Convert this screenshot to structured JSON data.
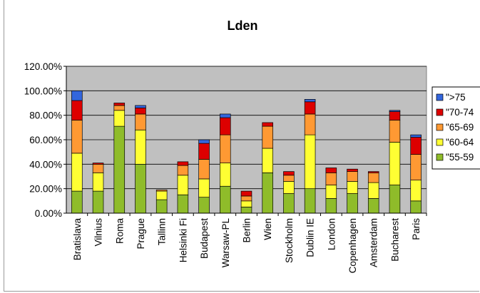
{
  "chart_data": {
    "type": "bar",
    "stacked": true,
    "title": "Lden",
    "xlabel": "",
    "ylabel": "",
    "ylim": [
      0,
      1.2
    ],
    "y_ticks": [
      "0.00%",
      "20.00%",
      "40.00%",
      "60.00%",
      "80.00%",
      "100.00%",
      "120.00%"
    ],
    "grid": true,
    "legend_position": "right",
    "categories": [
      "Bratislava",
      "Vilnius",
      "Roma",
      "Prague",
      "Tallinn",
      "Helsinki Fi",
      "Budapest",
      "Warsaw-PL",
      "Berlin",
      "Wien",
      "Stockholm",
      "Dublin IE",
      "London",
      "Copenhagen",
      "Amsterdam",
      "Bucharest",
      "Paris"
    ],
    "series": [
      {
        "name": "\"55-59",
        "color": "#8fbc2a",
        "values": [
          0.18,
          0.18,
          0.71,
          0.4,
          0.11,
          0.15,
          0.13,
          0.22,
          0.05,
          0.33,
          0.16,
          0.2,
          0.12,
          0.16,
          0.12,
          0.23,
          0.1
        ]
      },
      {
        "name": "\"60-64",
        "color": "#ffff33",
        "values": [
          0.31,
          0.15,
          0.13,
          0.28,
          0.07,
          0.16,
          0.15,
          0.19,
          0.05,
          0.2,
          0.1,
          0.44,
          0.11,
          0.1,
          0.13,
          0.35,
          0.17
        ]
      },
      {
        "name": "\"65-69",
        "color": "#ff9933",
        "values": [
          0.27,
          0.07,
          0.04,
          0.13,
          0.01,
          0.08,
          0.16,
          0.23,
          0.04,
          0.18,
          0.05,
          0.17,
          0.1,
          0.08,
          0.08,
          0.18,
          0.21
        ]
      },
      {
        "name": "\"70-74",
        "color": "#dd0000",
        "values": [
          0.16,
          0.01,
          0.02,
          0.05,
          0.0,
          0.03,
          0.13,
          0.14,
          0.04,
          0.03,
          0.03,
          0.1,
          0.04,
          0.02,
          0.01,
          0.07,
          0.14
        ]
      },
      {
        "name": "\">75",
        "color": "#3366dd",
        "values": [
          0.08,
          0.0,
          0.0,
          0.02,
          0.0,
          0.0,
          0.03,
          0.03,
          0.0,
          0.0,
          0.0,
          0.02,
          0.0,
          0.0,
          0.0,
          0.01,
          0.02
        ]
      }
    ],
    "legend_order": [
      "\">75",
      "\"70-74",
      "\"65-69",
      "\"60-64",
      "\"55-59"
    ],
    "plot_background": "#c0c0c0"
  }
}
